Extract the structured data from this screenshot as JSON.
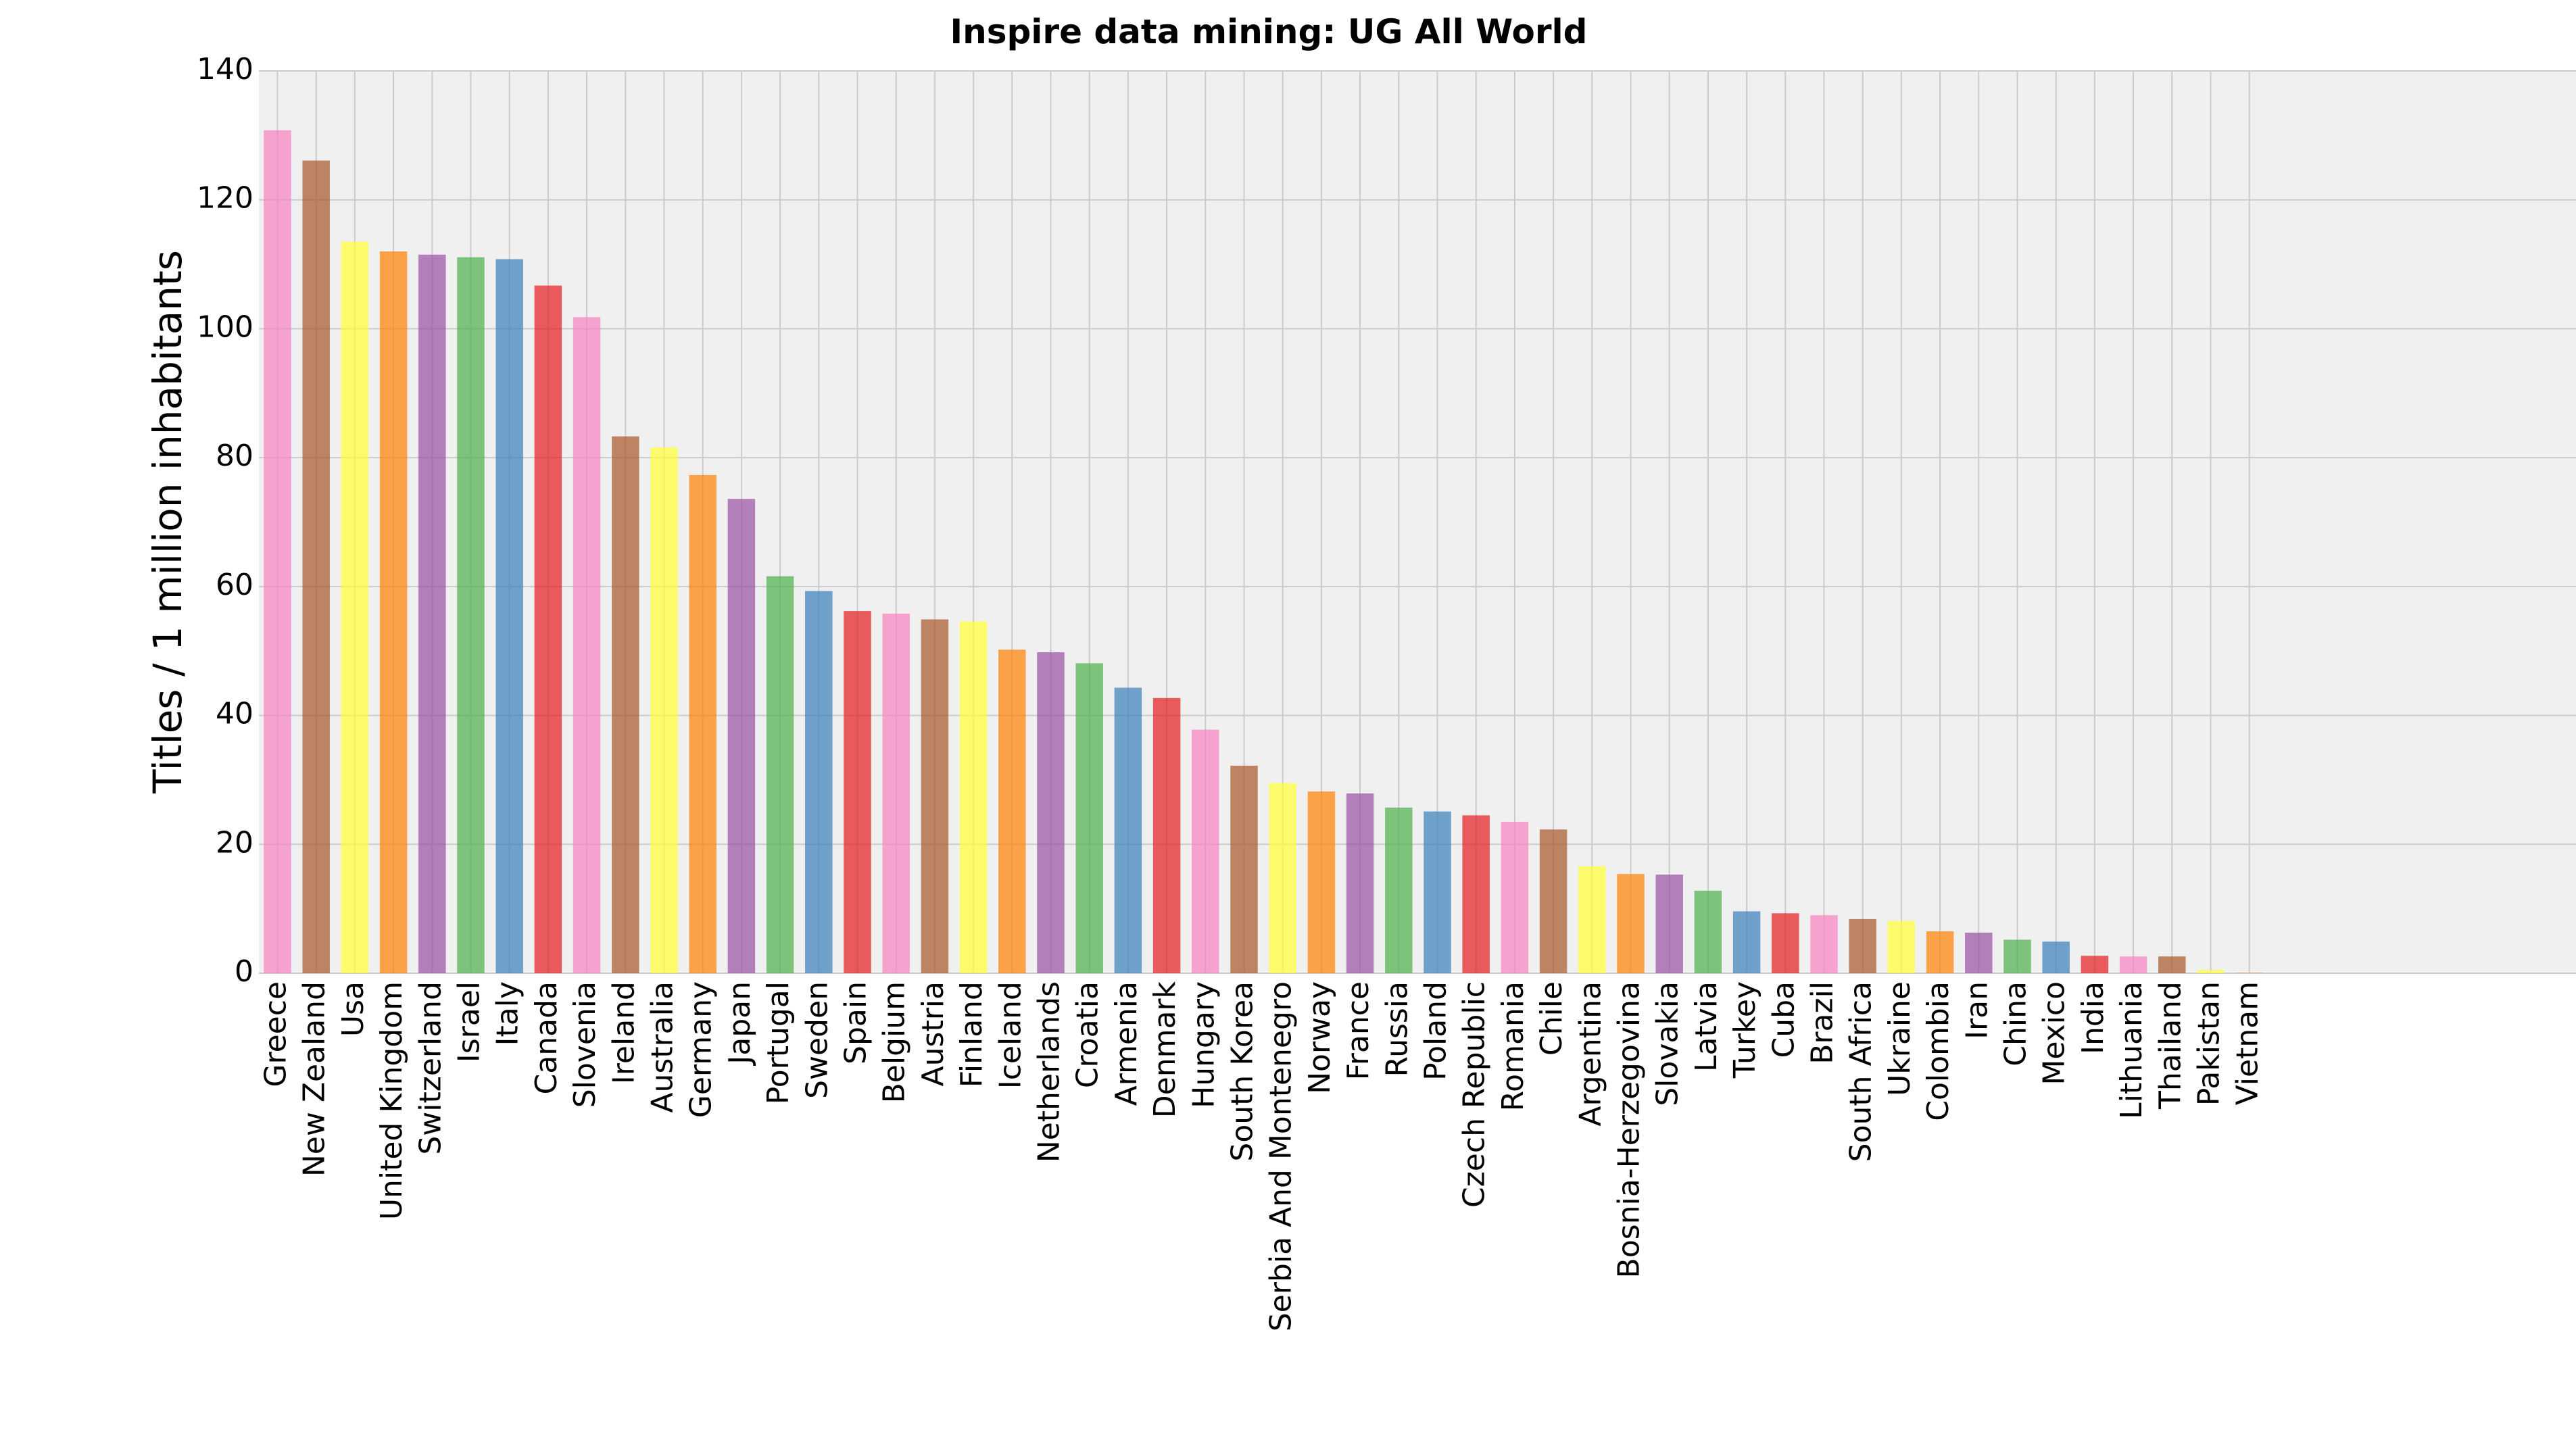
{
  "chart_data": {
    "type": "bar",
    "title": "Inspire data mining: UG All World",
    "xlabel": "",
    "ylabel": "Titles / 1 million inhabitants",
    "ylim": [
      0,
      140
    ],
    "yticks": [
      0,
      20,
      40,
      60,
      80,
      100,
      120,
      140
    ],
    "grid": true,
    "legend": "none",
    "categories": [
      "Greece",
      "New Zealand",
      "Usa",
      "United Kingdom",
      "Switzerland",
      "Israel",
      "Italy",
      "Canada",
      "Slovenia",
      "Ireland",
      "Australia",
      "Germany",
      "Japan",
      "Portugal",
      "Sweden",
      "Spain",
      "Belgium",
      "Austria",
      "Finland",
      "Iceland",
      "Netherlands",
      "Croatia",
      "Armenia",
      "Denmark",
      "Hungary",
      "South Korea",
      "Serbia And Montenegro",
      "Norway",
      "France",
      "Russia",
      "Poland",
      "Czech Republic",
      "Romania",
      "Chile",
      "Argentina",
      "Bosnia-Herzegovina",
      "Slovakia",
      "Latvia",
      "Turkey",
      "Cuba",
      "Brazil",
      "South Africa",
      "Ukraine",
      "Colombia",
      "Iran",
      "China",
      "Mexico",
      "India",
      "Lithuania",
      "Thailand",
      "Pakistan",
      "Vietnam"
    ],
    "values": [
      130.8,
      126.1,
      113.5,
      112.0,
      111.5,
      111.1,
      110.8,
      106.7,
      101.8,
      83.3,
      81.6,
      77.3,
      73.6,
      61.6,
      59.3,
      56.2,
      55.8,
      54.9,
      54.6,
      50.2,
      49.8,
      48.1,
      44.3,
      42.7,
      37.8,
      32.2,
      29.5,
      28.2,
      27.9,
      25.7,
      25.1,
      24.5,
      23.5,
      22.3,
      16.6,
      15.4,
      15.3,
      12.8,
      9.6,
      9.3,
      9.0,
      8.4,
      8.1,
      6.5,
      6.3,
      5.2,
      4.9,
      2.7,
      2.6,
      2.6,
      0.5,
      0.05
    ],
    "palette": [
      "#f781bf",
      "#a65628",
      "#ffff33",
      "#ff7f00",
      "#984ea3",
      "#4daf4a",
      "#377eb8",
      "#e41a1c"
    ],
    "background_color": "#f0f0f0",
    "grid_color": "#cbcbcb"
  }
}
